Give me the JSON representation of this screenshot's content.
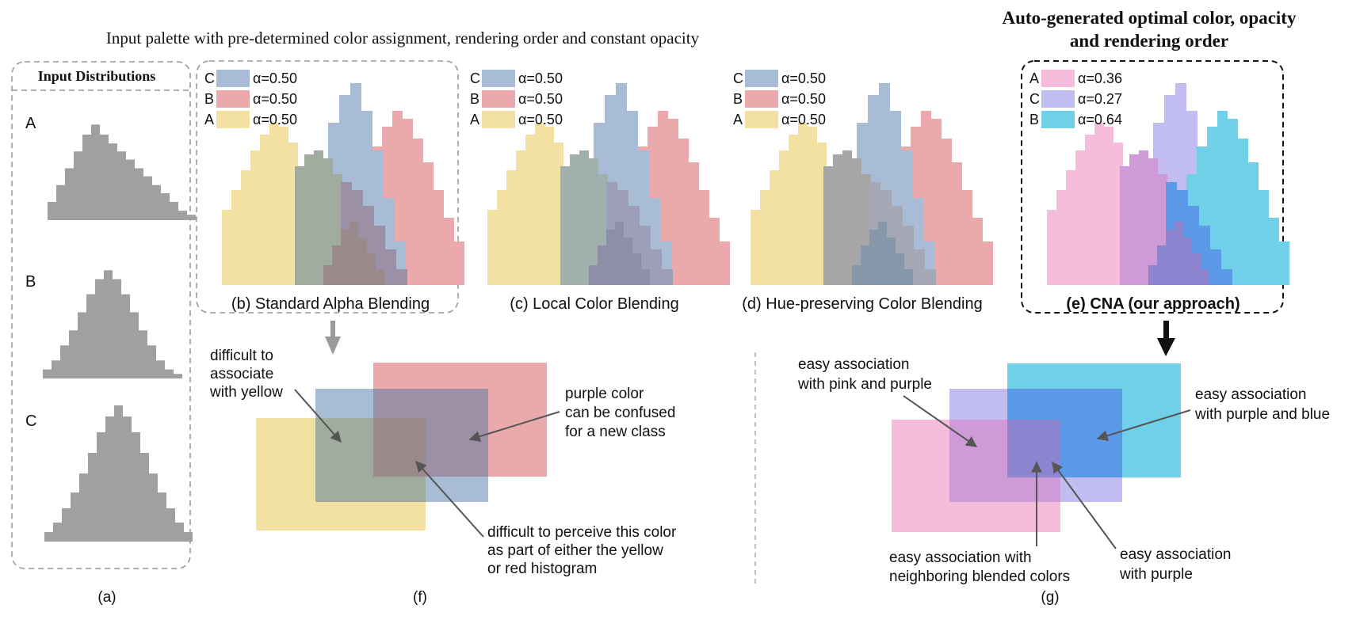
{
  "header": {
    "input_palette_title": "Input palette with pre-determined color assignment, rendering order and constant opacity",
    "auto_title_line1": "Auto-generated optimal color, opacity",
    "auto_title_line2": "and rendering order"
  },
  "input_panel": {
    "title": "Input Distributions",
    "labels": [
      "A",
      "B",
      "C"
    ],
    "caption": "(a)"
  },
  "colors": {
    "yellow": "#f3e1a4",
    "red": "#eaa9ab",
    "blue": "#a9bcd5",
    "pink": "#f6bcdc",
    "lavender": "#c2bdf1",
    "cyan": "#6fd0e8",
    "gray": "#a0a0a0"
  },
  "panels": [
    {
      "id": "b",
      "caption": "(b) Standard Alpha Blending",
      "legend": [
        {
          "label": "C",
          "color": "#a9bcd5",
          "alpha": "α=0.50"
        },
        {
          "label": "B",
          "color": "#eaa9ab",
          "alpha": "α=0.50"
        },
        {
          "label": "A",
          "color": "#f3e1a4",
          "alpha": "α=0.50"
        }
      ]
    },
    {
      "id": "c",
      "caption": "(c) Local Color Blending",
      "legend": [
        {
          "label": "C",
          "color": "#a9bcd5",
          "alpha": "α=0.50"
        },
        {
          "label": "B",
          "color": "#eaa9ab",
          "alpha": "α=0.50"
        },
        {
          "label": "A",
          "color": "#f3e1a4",
          "alpha": "α=0.50"
        }
      ]
    },
    {
      "id": "d",
      "caption": "(d) Hue-preserving Color Blending",
      "legend": [
        {
          "label": "C",
          "color": "#a9bcd5",
          "alpha": "α=0.50"
        },
        {
          "label": "B",
          "color": "#eaa9ab",
          "alpha": "α=0.50"
        },
        {
          "label": "A",
          "color": "#f3e1a4",
          "alpha": "α=0.50"
        }
      ]
    },
    {
      "id": "e",
      "caption": "(e) CNA (our approach)",
      "legend": [
        {
          "label": "A",
          "color": "#f6bcdc",
          "alpha": "α=0.36"
        },
        {
          "label": "C",
          "color": "#c2bdf1",
          "alpha": "α=0.27"
        },
        {
          "label": "B",
          "color": "#6fd0e8",
          "alpha": "α=0.64"
        }
      ]
    }
  ],
  "panel_f": {
    "caption": "(f)",
    "annotations": {
      "yellow_note": [
        "difficult to",
        "associate",
        "with yellow"
      ],
      "purple_note": [
        "purple color",
        "can be confused",
        "for a new class"
      ],
      "perceive_note": [
        "difficult to perceive this color",
        "as part of either the yellow",
        "or red histogram"
      ]
    }
  },
  "panel_g": {
    "caption": "(g)",
    "annotations": {
      "pink_purple": [
        "easy association",
        "with  pink and purple"
      ],
      "purple_blue": [
        "easy association",
        "with purple and blue"
      ],
      "neighboring": [
        "easy association with",
        "neighboring blended colors"
      ],
      "purple": [
        "easy association",
        "with purple"
      ]
    }
  }
}
